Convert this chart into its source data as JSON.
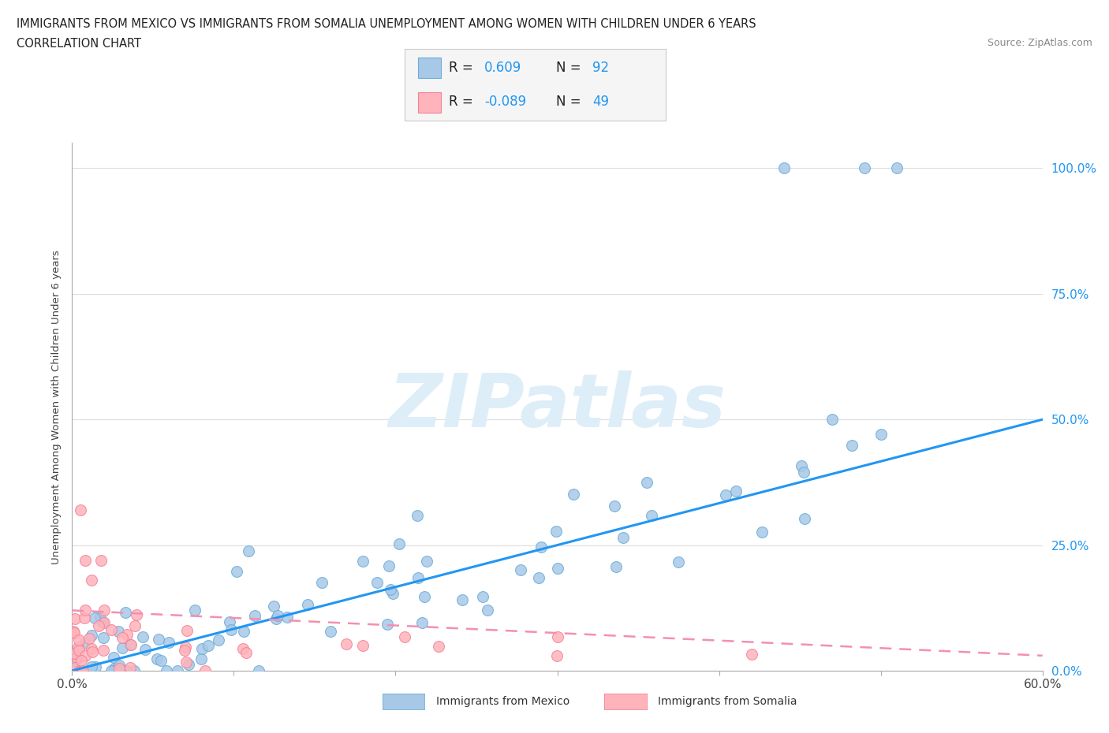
{
  "title_line1": "IMMIGRANTS FROM MEXICO VS IMMIGRANTS FROM SOMALIA UNEMPLOYMENT AMONG WOMEN WITH CHILDREN UNDER 6 YEARS",
  "title_line2": "CORRELATION CHART",
  "source": "Source: ZipAtlas.com",
  "ylabel": "Unemployment Among Women with Children Under 6 years",
  "xlim": [
    0.0,
    0.6
  ],
  "ylim": [
    0.0,
    1.05
  ],
  "ytick_positions": [
    0.0,
    0.25,
    0.5,
    0.75,
    1.0
  ],
  "ytick_labels": [
    "0.0%",
    "25.0%",
    "50.0%",
    "75.0%",
    "100.0%"
  ],
  "xtick_positions": [
    0.0,
    0.1,
    0.2,
    0.3,
    0.4,
    0.5,
    0.6
  ],
  "xtick_labels": [
    "0.0%",
    "",
    "",
    "",
    "",
    "",
    "60.0%"
  ],
  "mexico_R": 0.609,
  "mexico_N": 92,
  "somalia_R": -0.089,
  "somalia_N": 49,
  "mexico_color": "#a8c8e8",
  "mexico_edge": "#6baed6",
  "somalia_color": "#ffb3ba",
  "somalia_edge": "#f4829a",
  "trend_mexico_color": "#2196F3",
  "trend_somalia_color": "#f48fb1",
  "watermark_text": "ZIPatlas",
  "watermark_color": "#ddeef8",
  "background_color": "#ffffff",
  "grid_color": "#dddddd",
  "ytick_color": "#2196F3",
  "title_color": "#222222",
  "source_color": "#888888",
  "legend_bg": "#f5f5f5",
  "legend_border": "#cccccc",
  "legend_text_color": "#222222",
  "legend_val_color": "#2196F3"
}
